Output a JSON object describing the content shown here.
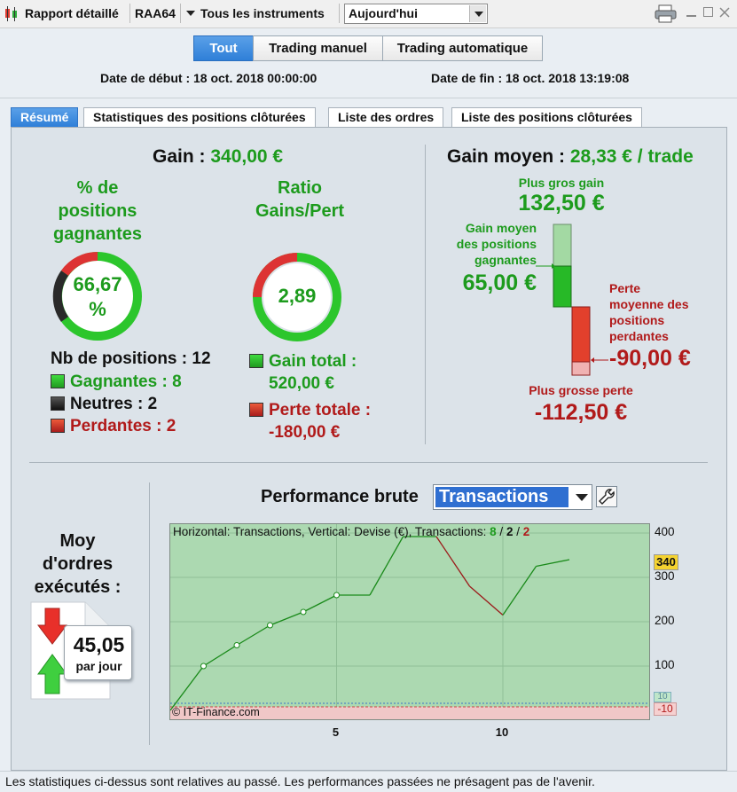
{
  "titlebar": {
    "report_label": "Rapport détaillé",
    "account": "RAA64",
    "instruments": "Tous les instruments",
    "period": "Aujourd'hui"
  },
  "mode_tabs": [
    "Tout",
    "Trading manuel",
    "Trading automatique"
  ],
  "dates": {
    "start": "Date de début : 18 oct. 2018 00:00:00",
    "end": "Date de fin : 18 oct. 2018 13:19:08"
  },
  "tabs": [
    "Résumé",
    "Statistiques des positions clôturées",
    "Liste des ordres",
    "Liste des positions clôturées"
  ],
  "summary": {
    "gain_label": "Gain :",
    "gain_value": "340,00 €",
    "pct_label_1": "% de",
    "pct_label_2": "positions",
    "pct_label_3": "gagnantes",
    "pct_value": "66,67",
    "pct_unit": "%",
    "pct_ratio": 0.6667,
    "ratio_label_1": "Ratio",
    "ratio_label_2": "Gains/Pert",
    "ratio_value": "2,89",
    "nb_positions": "Nb de positions : 12",
    "gagnantes": "Gagnantes : 8",
    "neutres": "Neutres : 2",
    "perdantes": "Perdantes : 2",
    "gain_total_label": "Gain total :",
    "gain_total_value": "520,00 €",
    "perte_totale_label": "Perte totale :",
    "perte_totale_value": "-180,00 €"
  },
  "avg": {
    "title": "Gain moyen :",
    "value": "28,33 € / trade",
    "best_label": "Plus gros gain",
    "best_value": "132,50 €",
    "avg_win_label_1": "Gain moyen",
    "avg_win_label_2": "des positions",
    "avg_win_label_3": "gagnantes",
    "avg_win_value": "65,00 €",
    "avg_loss_label_1": "Perte",
    "avg_loss_label_2": "moyenne des",
    "avg_loss_label_3": "positions",
    "avg_loss_label_4": "perdantes",
    "avg_loss_value": "-90,00 €",
    "worst_label": "Plus grosse perte",
    "worst_value": "-112,50 €"
  },
  "orders": {
    "label_1": "Moy",
    "label_2": "d'ordres",
    "label_3": "exécutés :",
    "value": "45,05",
    "unit": "par jour"
  },
  "performance": {
    "title": "Performance brute",
    "mode": "Transactions",
    "info_prefix": "Horizontal: Transactions, Vertical: Devise (€), Transactions: ",
    "info_wins": "8",
    "info_neutral": "2",
    "info_losses": "2",
    "credit": "© IT-Finance.com",
    "current_badge": "340",
    "min_badge": "-10",
    "zero_badge": "10"
  },
  "chart_data": {
    "type": "line",
    "x": [
      0,
      1,
      2,
      3,
      4,
      5,
      6,
      7,
      8,
      9,
      10,
      11,
      12
    ],
    "y": [
      0,
      100,
      147,
      192,
      222,
      260,
      260,
      392,
      392,
      280,
      215,
      325,
      340
    ],
    "y_ticks": [
      100,
      200,
      300,
      400
    ],
    "x_ticks": [
      5,
      10
    ],
    "ylim": [
      -20,
      420
    ],
    "xlim": [
      0,
      14.4
    ],
    "colors": {
      "up": "#1a8a1a",
      "down": "#9b1a1a",
      "bg": "#acd9b1"
    }
  },
  "footer": "Les statistiques ci-dessus sont relatives au passé. Les performances passées ne présagent pas de l'avenir.",
  "colors": {
    "green": "#1d9b1d",
    "red": "#b11a1a",
    "blue": "#2f7fd8"
  }
}
